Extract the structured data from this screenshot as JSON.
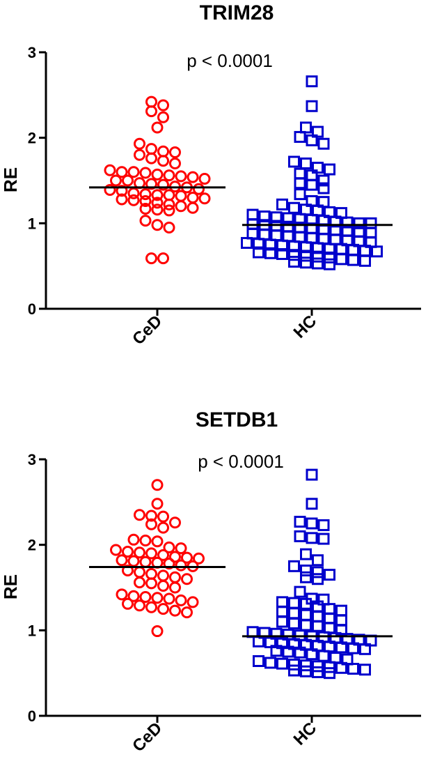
{
  "chart_data": [
    {
      "type": "scatter",
      "title": "TRIM28",
      "ylabel": "RE",
      "ylim": [
        0,
        3
      ],
      "yticks": [
        "0",
        "1",
        "2",
        "3"
      ],
      "annotation": "p < 0.0001",
      "categories": [
        "CeD",
        "HC"
      ],
      "series": [
        {
          "name": "CeD",
          "marker": "circle",
          "color": "#ff0000",
          "median": 1.42,
          "values": [
            2.42,
            2.38,
            2.31,
            2.24,
            2.12,
            1.93,
            1.87,
            1.84,
            1.83,
            1.8,
            1.76,
            1.73,
            1.7,
            1.62,
            1.6,
            1.6,
            1.59,
            1.57,
            1.56,
            1.55,
            1.54,
            1.52,
            1.5,
            1.5,
            1.47,
            1.46,
            1.45,
            1.43,
            1.42,
            1.4,
            1.39,
            1.38,
            1.35,
            1.34,
            1.33,
            1.33,
            1.32,
            1.3,
            1.29,
            1.28,
            1.27,
            1.26,
            1.24,
            1.22,
            1.2,
            1.18,
            1.17,
            1.16,
            1.15,
            1.03,
            0.98,
            0.95,
            0.59,
            0.59
          ]
        },
        {
          "name": "HC",
          "marker": "square",
          "color": "#0000cc",
          "median": 0.98,
          "values": [
            2.66,
            2.37,
            2.12,
            2.07,
            2.01,
            1.97,
            1.93,
            1.72,
            1.7,
            1.65,
            1.63,
            1.58,
            1.56,
            1.5,
            1.47,
            1.45,
            1.41,
            1.34,
            1.26,
            1.25,
            1.22,
            1.18,
            1.16,
            1.15,
            1.13,
            1.12,
            1.1,
            1.08,
            1.07,
            1.06,
            1.05,
            1.04,
            1.03,
            1.02,
            1.01,
            1.0,
            1.0,
            0.99,
            0.98,
            0.97,
            0.96,
            0.95,
            0.94,
            0.93,
            0.92,
            0.91,
            0.9,
            0.89,
            0.88,
            0.87,
            0.86,
            0.85,
            0.84,
            0.83,
            0.82,
            0.81,
            0.8,
            0.79,
            0.78,
            0.77,
            0.76,
            0.75,
            0.74,
            0.73,
            0.72,
            0.71,
            0.7,
            0.7,
            0.69,
            0.68,
            0.67,
            0.66,
            0.65,
            0.64,
            0.63,
            0.62,
            0.61,
            0.6,
            0.58,
            0.57,
            0.56,
            0.55,
            0.54,
            0.53,
            0.52
          ]
        }
      ]
    },
    {
      "type": "scatter",
      "title": "SETDB1",
      "ylabel": "RE",
      "ylim": [
        0,
        3
      ],
      "yticks": [
        "0",
        "1",
        "2",
        "3"
      ],
      "annotation": "p < 0.0001",
      "categories": [
        "CeD",
        "HC"
      ],
      "series": [
        {
          "name": "CeD",
          "marker": "circle",
          "color": "#ff0000",
          "median": 1.74,
          "values": [
            2.7,
            2.48,
            2.35,
            2.34,
            2.33,
            2.26,
            2.24,
            2.2,
            2.06,
            2.05,
            2.04,
            1.97,
            1.96,
            1.94,
            1.92,
            1.91,
            1.9,
            1.88,
            1.86,
            1.85,
            1.84,
            1.82,
            1.81,
            1.8,
            1.79,
            1.78,
            1.76,
            1.75,
            1.7,
            1.68,
            1.66,
            1.64,
            1.62,
            1.6,
            1.56,
            1.55,
            1.52,
            1.5,
            1.42,
            1.4,
            1.39,
            1.38,
            1.37,
            1.35,
            1.33,
            1.31,
            1.29,
            1.27,
            1.25,
            1.23,
            1.21,
            0.99
          ]
        },
        {
          "name": "HC",
          "marker": "square",
          "color": "#0000cc",
          "median": 0.93,
          "values": [
            2.82,
            2.48,
            2.27,
            2.25,
            2.23,
            2.1,
            2.08,
            2.07,
            1.89,
            1.82,
            1.75,
            1.7,
            1.68,
            1.65,
            1.62,
            1.6,
            1.45,
            1.37,
            1.36,
            1.33,
            1.32,
            1.31,
            1.28,
            1.25,
            1.23,
            1.22,
            1.2,
            1.18,
            1.16,
            1.14,
            1.12,
            1.1,
            1.08,
            1.06,
            1.05,
            1.03,
            1.0,
            0.98,
            0.97,
            0.96,
            0.95,
            0.94,
            0.93,
            0.92,
            0.91,
            0.9,
            0.89,
            0.88,
            0.87,
            0.86,
            0.85,
            0.84,
            0.83,
            0.82,
            0.81,
            0.8,
            0.79,
            0.78,
            0.76,
            0.75,
            0.74,
            0.72,
            0.7,
            0.68,
            0.66,
            0.64,
            0.62,
            0.61,
            0.6,
            0.59,
            0.58,
            0.57,
            0.56,
            0.55,
            0.54,
            0.53,
            0.52,
            0.51,
            0.5
          ]
        }
      ]
    }
  ]
}
